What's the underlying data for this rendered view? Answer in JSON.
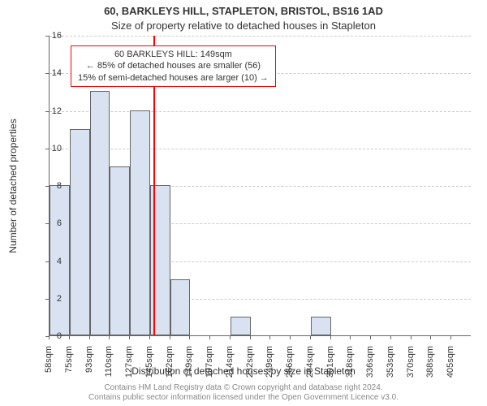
{
  "title": "60, BARKLEYS HILL, STAPLETON, BRISTOL, BS16 1AD",
  "subtitle": "Size of property relative to detached houses in Stapleton",
  "y_axis_label": "Number of detached properties",
  "x_axis_label": "Distribution of detached houses by size in Stapleton",
  "ylim": [
    0,
    16
  ],
  "ytick_step": 2,
  "y_ticks": [
    0,
    2,
    4,
    6,
    8,
    10,
    12,
    14,
    16
  ],
  "x_tick_labels": [
    "58sqm",
    "75sqm",
    "93sqm",
    "110sqm",
    "127sqm",
    "145sqm",
    "162sqm",
    "179sqm",
    "197sqm",
    "214sqm",
    "232sqm",
    "249sqm",
    "266sqm",
    "284sqm",
    "301sqm",
    "318sqm",
    "336sqm",
    "353sqm",
    "370sqm",
    "388sqm",
    "405sqm"
  ],
  "bar_values": [
    8,
    11,
    13,
    9,
    12,
    8,
    3,
    0,
    0,
    1,
    0,
    0,
    0,
    1,
    0,
    0,
    0,
    0,
    0,
    0,
    0
  ],
  "bar_color": "#d8e2f0",
  "bar_border_color": "#666666",
  "grid_color": "#cccccc",
  "background_color": "#ffffff",
  "ref_line": {
    "position_index": 5.15,
    "color": "#ff0000"
  },
  "annotation": {
    "line1": "60 BARKLEYS HILL: 149sqm",
    "line2": "← 85% of detached houses are smaller (56)",
    "line3": "15% of semi-detached houses are larger (10) →",
    "border_color": "#ff0000"
  },
  "footer_line1": "Contains HM Land Registry data © Crown copyright and database right 2024.",
  "footer_line2": "Contains public sector information licensed under the Open Government Licence v3.0.",
  "title_fontsize": 13,
  "label_fontsize": 12,
  "tick_fontsize": 11,
  "annotation_fontsize": 11,
  "footer_fontsize": 10
}
